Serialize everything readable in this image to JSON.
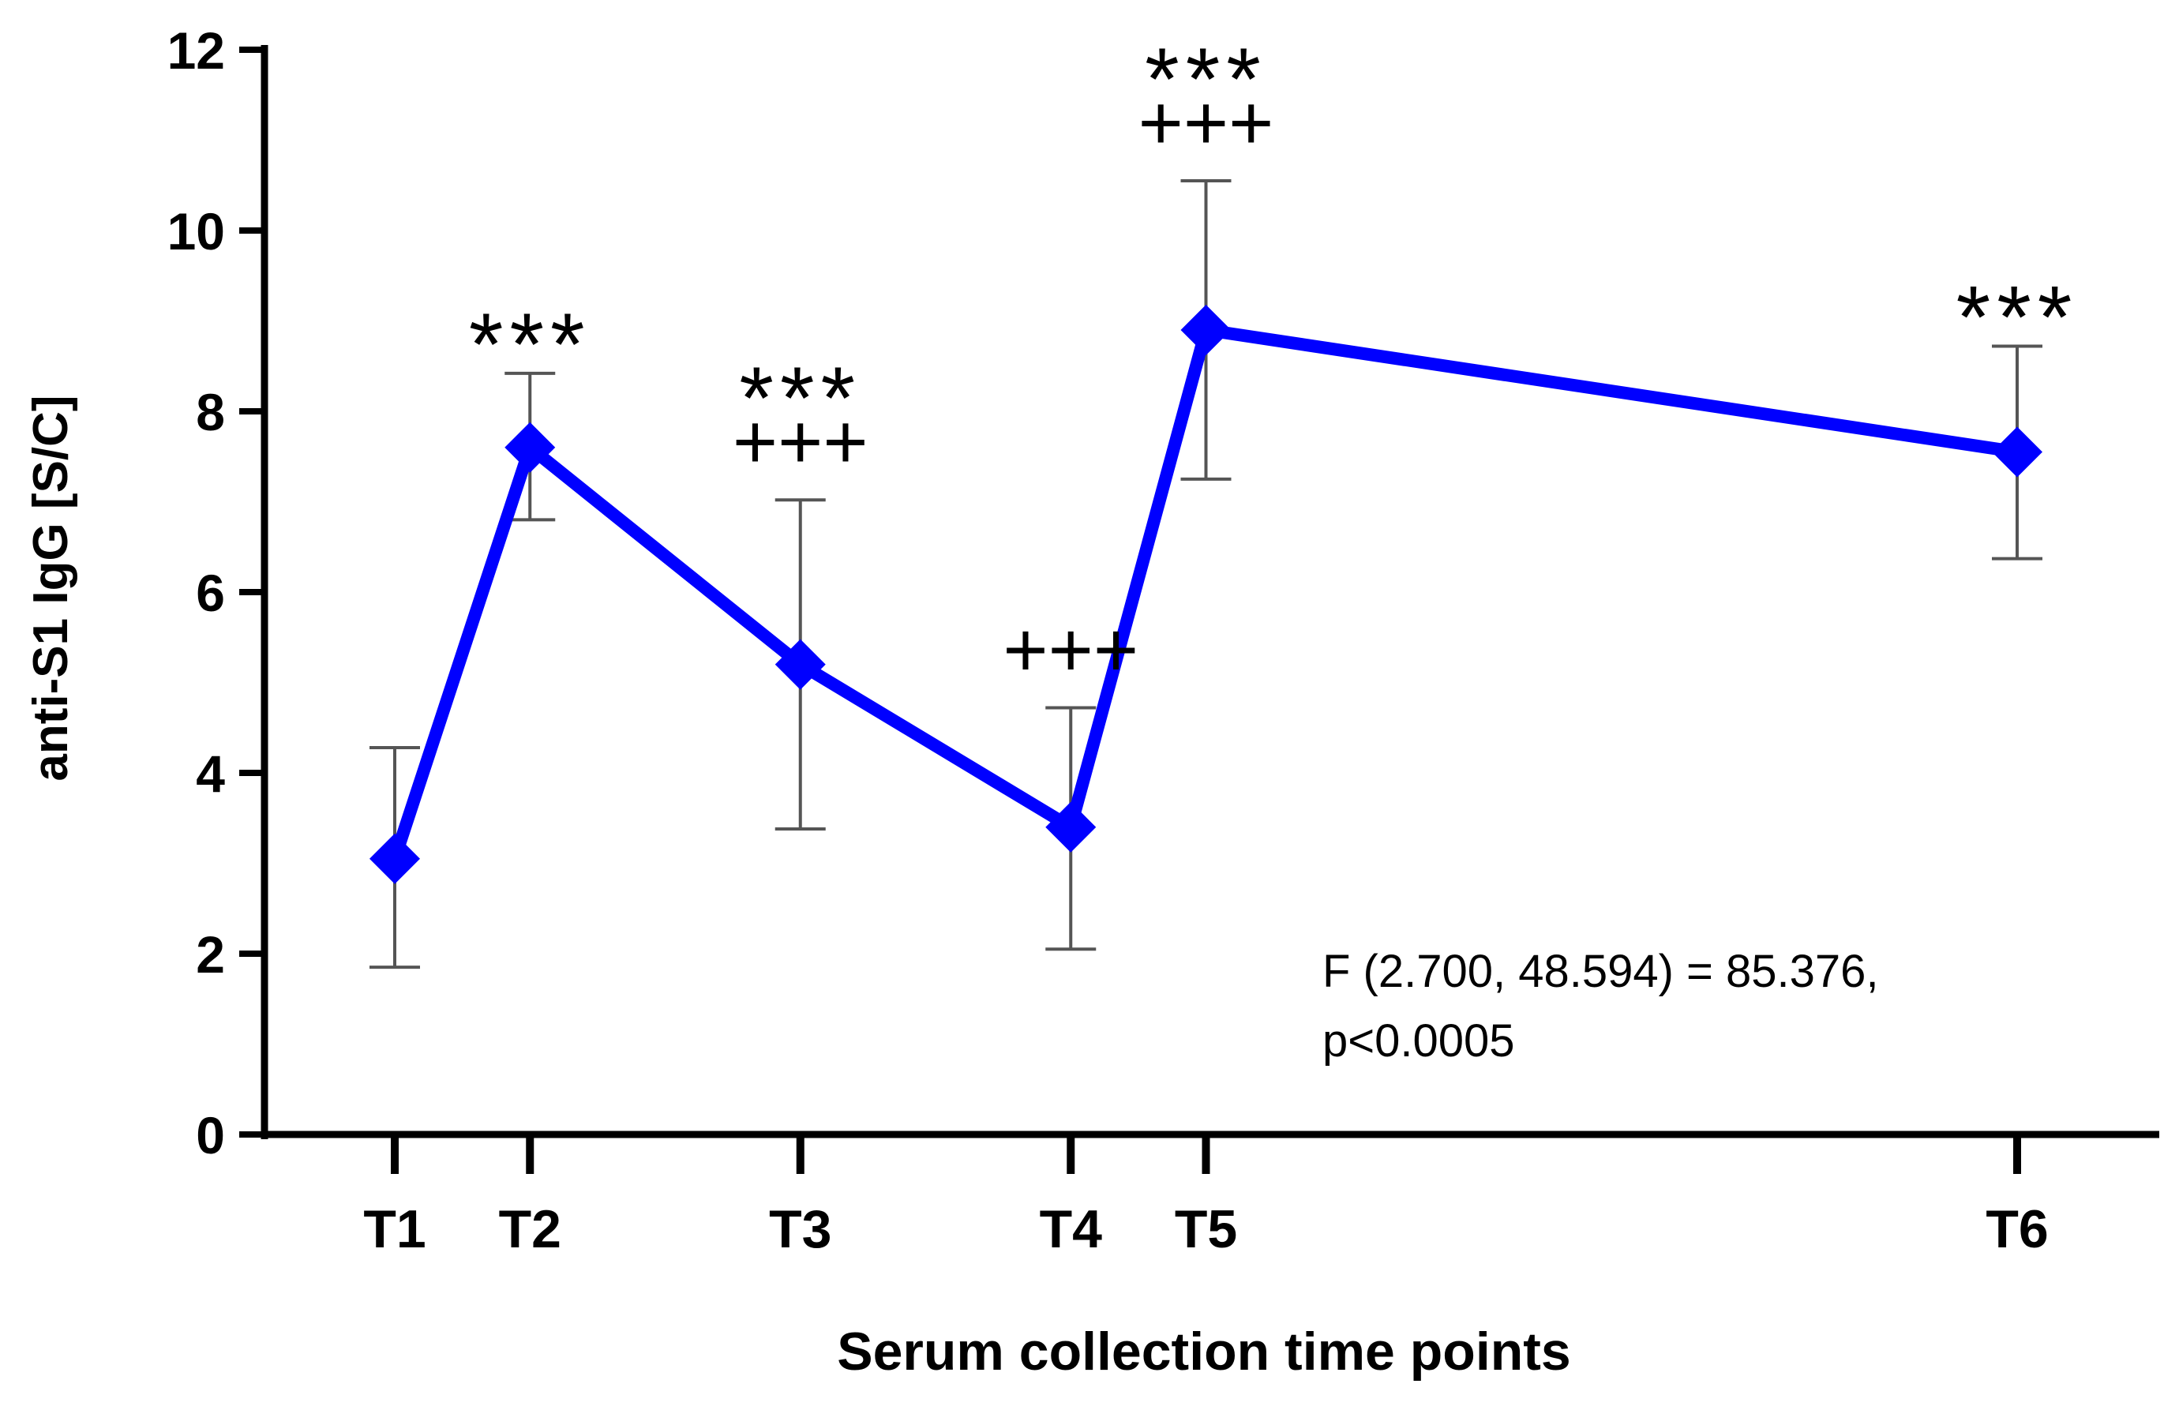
{
  "chart_data": {
    "type": "line",
    "title": "",
    "xlabel": "Serum collection time points",
    "ylabel": "anti-S1 IgG [S/C]",
    "ylim": [
      0,
      12
    ],
    "yticks": [
      0,
      2,
      4,
      6,
      8,
      10,
      12
    ],
    "grid": false,
    "legend": "none",
    "series": [
      {
        "color": "#0000ff",
        "points": [
          {
            "label": "T1",
            "x": 0,
            "y": 3.05,
            "err_low": 1.85,
            "err_high": 4.28
          },
          {
            "label": "T2",
            "x": 1,
            "y": 7.6,
            "err_low": 6.8,
            "err_high": 8.42
          },
          {
            "label": "T3",
            "x": 3,
            "y": 5.2,
            "err_low": 3.38,
            "err_high": 7.02
          },
          {
            "label": "T4",
            "x": 5,
            "y": 3.4,
            "err_low": 2.05,
            "err_high": 4.72
          },
          {
            "label": "T5",
            "x": 6,
            "y": 8.9,
            "err_low": 7.25,
            "err_high": 10.55
          },
          {
            "label": "T6",
            "x": 12,
            "y": 7.55,
            "err_low": 6.37,
            "err_high": 8.72
          }
        ]
      }
    ],
    "annotations": [
      {
        "target": "T2",
        "lines": [
          "***"
        ]
      },
      {
        "target": "T3",
        "lines": [
          "***",
          "+++"
        ]
      },
      {
        "target": "T4",
        "lines": [
          "+++"
        ]
      },
      {
        "target": "T5",
        "lines": [
          "***",
          "+++"
        ]
      },
      {
        "target": "T6",
        "lines": [
          "***"
        ]
      }
    ],
    "stat_text": [
      "F (2.700, 48.594) = 85.376,",
      "p<0.0005"
    ]
  }
}
